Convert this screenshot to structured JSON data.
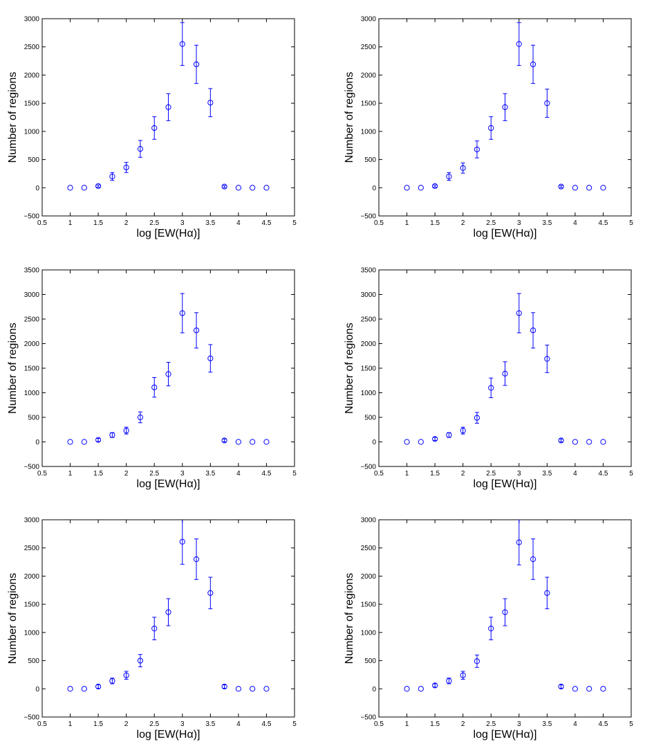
{
  "figure": {
    "series_color": "#0000ff",
    "axis_color": "#000000"
  },
  "chart_data": [
    {
      "type": "scatter",
      "marker": "circle",
      "x": [
        1,
        1.25,
        1.5,
        1.75,
        2,
        2.25,
        2.5,
        2.75,
        3,
        3.25,
        3.5,
        3.75,
        4,
        4.25,
        4.5
      ],
      "y": [
        0,
        0,
        30,
        200,
        360,
        690,
        1060,
        1430,
        2550,
        2190,
        1510,
        20,
        0,
        0,
        0
      ],
      "yerr": [
        0,
        0,
        20,
        70,
        90,
        150,
        200,
        240,
        380,
        340,
        250,
        20,
        0,
        0,
        0
      ],
      "xlim": [
        0.5,
        5
      ],
      "ylim": [
        -500,
        3000
      ],
      "xticks": [
        "0.5",
        "1",
        "1.5",
        "2",
        "2.5",
        "3",
        "3.5",
        "4",
        "4.5",
        "5"
      ],
      "yticks": [
        "−500",
        "0",
        "500",
        "1000",
        "1500",
        "2000",
        "2500",
        "3000"
      ],
      "xlabel_prefix": "log [EW(H",
      "xlabel_greek": "α",
      "xlabel_suffix": ")]",
      "ylabel": "Number of regions"
    },
    {
      "type": "scatter",
      "marker": "circle",
      "x": [
        1,
        1.25,
        1.5,
        1.75,
        2,
        2.25,
        2.5,
        2.75,
        3,
        3.25,
        3.5,
        3.75,
        4,
        4.25,
        4.5
      ],
      "y": [
        0,
        0,
        30,
        200,
        350,
        680,
        1060,
        1430,
        2550,
        2190,
        1500,
        20,
        0,
        0,
        0
      ],
      "yerr": [
        0,
        0,
        20,
        70,
        90,
        150,
        200,
        240,
        380,
        340,
        250,
        20,
        0,
        0,
        0
      ],
      "xlim": [
        0.5,
        5
      ],
      "ylim": [
        -500,
        3000
      ],
      "xticks": [
        "0.5",
        "1",
        "1.5",
        "2",
        "2.5",
        "3",
        "3.5",
        "4",
        "4.5",
        "5"
      ],
      "yticks": [
        "−500",
        "0",
        "500",
        "1000",
        "1500",
        "2000",
        "2500",
        "3000"
      ],
      "xlabel_prefix": "log [EW(H",
      "xlabel_greek": "α",
      "xlabel_suffix": ")]",
      "ylabel": "Number of regions"
    },
    {
      "type": "scatter",
      "marker": "circle",
      "x": [
        1,
        1.25,
        1.5,
        1.75,
        2,
        2.25,
        2.5,
        2.75,
        3,
        3.25,
        3.5,
        3.75,
        4,
        4.25,
        4.5
      ],
      "y": [
        0,
        0,
        40,
        140,
        230,
        500,
        1110,
        1380,
        2620,
        2270,
        1700,
        30,
        0,
        0,
        0
      ],
      "yerr": [
        0,
        0,
        30,
        50,
        70,
        110,
        200,
        240,
        400,
        360,
        280,
        30,
        0,
        0,
        0
      ],
      "xlim": [
        0.5,
        5
      ],
      "ylim": [
        -500,
        3500
      ],
      "xticks": [
        "0.5",
        "1",
        "1.5",
        "2",
        "2.5",
        "3",
        "3.5",
        "4",
        "4.5",
        "5"
      ],
      "yticks": [
        "−500",
        "0",
        "500",
        "1000",
        "1500",
        "2000",
        "2500",
        "3000",
        "3500"
      ],
      "xlabel_prefix": "log [EW(H",
      "xlabel_greek": "α",
      "xlabel_suffix": ")]",
      "ylabel": "Number of regions"
    },
    {
      "type": "scatter",
      "marker": "circle",
      "x": [
        1,
        1.25,
        1.5,
        1.75,
        2,
        2.25,
        2.5,
        2.75,
        3,
        3.25,
        3.5,
        3.75,
        4,
        4.25,
        4.5
      ],
      "y": [
        0,
        0,
        60,
        140,
        230,
        490,
        1100,
        1390,
        2620,
        2270,
        1690,
        30,
        0,
        0,
        0
      ],
      "yerr": [
        0,
        0,
        30,
        50,
        70,
        110,
        200,
        240,
        400,
        360,
        280,
        30,
        0,
        0,
        0
      ],
      "xlim": [
        0.5,
        5
      ],
      "ylim": [
        -500,
        3500
      ],
      "xticks": [
        "0.5",
        "1",
        "1.5",
        "2",
        "2.5",
        "3",
        "3.5",
        "4",
        "4.5",
        "5"
      ],
      "yticks": [
        "−500",
        "0",
        "500",
        "1000",
        "1500",
        "2000",
        "2500",
        "3000",
        "3500"
      ],
      "xlabel_prefix": "log [EW(H",
      "xlabel_greek": "α",
      "xlabel_suffix": ")]",
      "ylabel": "Number of regions"
    },
    {
      "type": "scatter",
      "marker": "circle",
      "x": [
        1,
        1.25,
        1.5,
        1.75,
        2,
        2.25,
        2.5,
        2.75,
        3,
        3.25,
        3.5,
        3.75,
        4,
        4.25,
        4.5
      ],
      "y": [
        0,
        0,
        40,
        140,
        240,
        500,
        1070,
        1360,
        2610,
        2300,
        1700,
        40,
        0,
        0,
        0
      ],
      "yerr": [
        0,
        0,
        30,
        50,
        70,
        110,
        200,
        240,
        400,
        360,
        280,
        30,
        0,
        0,
        0
      ],
      "xlim": [
        0.5,
        5
      ],
      "ylim": [
        -500,
        3000
      ],
      "xticks": [
        "0.5",
        "1",
        "1.5",
        "2",
        "2.5",
        "3",
        "3.5",
        "4",
        "4.5",
        "5"
      ],
      "yticks": [
        "−500",
        "0",
        "500",
        "1000",
        "1500",
        "2000",
        "2500",
        "3000"
      ],
      "xlabel_prefix": "log [EW(H",
      "xlabel_greek": "α",
      "xlabel_suffix": ")]",
      "ylabel": "Number of regions"
    },
    {
      "type": "scatter",
      "marker": "circle",
      "x": [
        1,
        1.25,
        1.5,
        1.75,
        2,
        2.25,
        2.5,
        2.75,
        3,
        3.25,
        3.5,
        3.75,
        4,
        4.25,
        4.5
      ],
      "y": [
        0,
        0,
        60,
        140,
        240,
        490,
        1070,
        1360,
        2600,
        2300,
        1700,
        40,
        0,
        0,
        0
      ],
      "yerr": [
        0,
        0,
        30,
        50,
        70,
        110,
        200,
        240,
        400,
        360,
        280,
        30,
        0,
        0,
        0
      ],
      "xlim": [
        0.5,
        5
      ],
      "ylim": [
        -500,
        3000
      ],
      "xticks": [
        "0.5",
        "1",
        "1.5",
        "2",
        "2.5",
        "3",
        "3.5",
        "4",
        "4.5",
        "5"
      ],
      "yticks": [
        "−500",
        "0",
        "500",
        "1000",
        "1500",
        "2000",
        "2500",
        "3000"
      ],
      "xlabel_prefix": "log [EW(H",
      "xlabel_greek": "α",
      "xlabel_suffix": ")]",
      "ylabel": "Number of regions"
    }
  ]
}
